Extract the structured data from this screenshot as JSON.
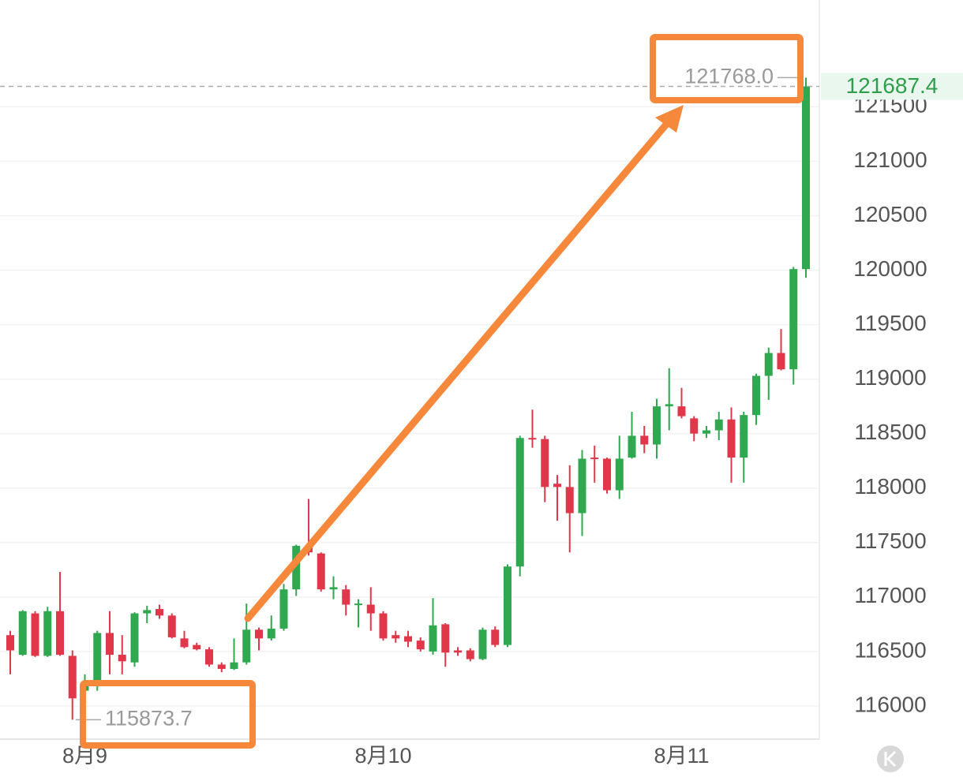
{
  "chart_data": {
    "type": "candlestick",
    "categories": [
      null,
      null,
      null,
      null,
      null,
      null,
      "8月9",
      null,
      null,
      null,
      null,
      null,
      null,
      null,
      null,
      null,
      null,
      null,
      null,
      null,
      null,
      null,
      null,
      null,
      null,
      null,
      null,
      null,
      null,
      null,
      "8月10",
      null,
      null,
      null,
      null,
      null,
      null,
      null,
      null,
      null,
      null,
      null,
      null,
      null,
      null,
      null,
      null,
      null,
      null,
      null,
      null,
      null,
      null,
      null,
      "8月11",
      null,
      null,
      null,
      null,
      null,
      null,
      null,
      null,
      null,
      null
    ],
    "open": [
      116650,
      116470,
      116850,
      116460,
      116870,
      116460,
      116140,
      116180,
      116670,
      116470,
      116400,
      116850,
      116890,
      116830,
      116620,
      116560,
      116520,
      116380,
      116340,
      116400,
      116700,
      116620,
      116710,
      117070,
      117460,
      117400,
      117070,
      117070,
      116930,
      116930,
      116850,
      116650,
      116640,
      116600,
      116500,
      116750,
      116510,
      116510,
      116430,
      116700,
      116560,
      117280,
      118460,
      118450,
      118040,
      118010,
      117770,
      118280,
      118270,
      117980,
      118280,
      118480,
      118400,
      118750,
      118750,
      118640,
      118500,
      118530,
      118630,
      118280,
      118670,
      119030,
      119240,
      119090,
      120010
    ],
    "high": [
      116690,
      116880,
      116870,
      116910,
      117230,
      116510,
      116290,
      116690,
      116870,
      116650,
      116860,
      116920,
      116930,
      116850,
      116690,
      116580,
      116540,
      116400,
      116620,
      116940,
      116720,
      116830,
      117120,
      117480,
      117900,
      117410,
      117190,
      117110,
      116980,
      117090,
      116870,
      116690,
      116690,
      116630,
      116990,
      116760,
      116540,
      116530,
      116720,
      116730,
      117300,
      118480,
      118720,
      118480,
      118120,
      118210,
      118350,
      118390,
      118280,
      118480,
      118700,
      118570,
      118820,
      119100,
      118920,
      118660,
      118570,
      118700,
      118740,
      118700,
      119050,
      119290,
      119460,
      120030,
      121768.0
    ],
    "low": [
      116290,
      116460,
      116450,
      116450,
      116460,
      115873.7,
      116110,
      116140,
      116290,
      116290,
      116360,
      116760,
      116800,
      116620,
      116530,
      116510,
      116360,
      116310,
      116330,
      116380,
      116510,
      116600,
      116690,
      117010,
      117380,
      117050,
      116980,
      116830,
      116720,
      116690,
      116600,
      116580,
      116540,
      116500,
      116470,
      116360,
      116460,
      116410,
      116420,
      116540,
      116540,
      117190,
      118370,
      117870,
      117700,
      117410,
      117560,
      118050,
      117950,
      117900,
      118270,
      118320,
      118270,
      118530,
      118640,
      118430,
      118460,
      118440,
      118050,
      118050,
      118580,
      118810,
      119080,
      118950,
      119930
    ],
    "close": [
      116510,
      116870,
      116460,
      116870,
      116470,
      116070,
      116220,
      116670,
      116470,
      116410,
      116850,
      116880,
      116830,
      116630,
      116540,
      116520,
      116380,
      116340,
      116400,
      116700,
      116620,
      116710,
      117070,
      117470,
      117410,
      117070,
      117090,
      116930,
      116940,
      116850,
      116620,
      116620,
      116590,
      116520,
      116740,
      116490,
      116490,
      116430,
      116700,
      116560,
      117280,
      118460,
      118450,
      118010,
      118010,
      117770,
      118270,
      118270,
      117980,
      118270,
      118480,
      118400,
      118750,
      118770,
      118660,
      118500,
      118530,
      118630,
      118280,
      118670,
      119030,
      119240,
      119090,
      120010,
      121687.4
    ],
    "up_color": "#2fa84f",
    "down_color": "#e0384a",
    "ylim": [
      115710,
      122480
    ],
    "yticks": [
      116000,
      116500,
      117000,
      117500,
      118000,
      118500,
      119000,
      119500,
      120000,
      120500,
      121000,
      121500
    ],
    "grid": true,
    "last_price": 121687.4,
    "extremes": [
      {
        "value": 121768.0,
        "label": "121768.0"
      },
      {
        "value": 115873.7,
        "label": "115873.7"
      }
    ]
  }
}
